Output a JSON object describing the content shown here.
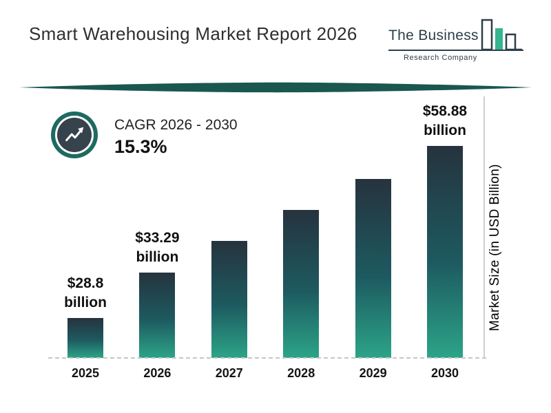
{
  "page": {
    "title": "Smart Warehousing Market Report 2026"
  },
  "logo": {
    "name": "The Business",
    "subtitle": "Research Company",
    "icon": "bar-chart-logo-icon"
  },
  "cagr": {
    "label": "CAGR 2026 - 2030",
    "value": "15.3%",
    "icon": "trend-up-arrow-icon"
  },
  "colors": {
    "divider_teal": "#19574f",
    "badge_ring_teal": "#1e6a60",
    "badge_inner": "#36424c",
    "bar_top": "#26333e",
    "bar_mid": "#1d5a60",
    "bar_bottom": "#2ca488",
    "text": "#141414",
    "axis_gray": "#cfcfcf"
  },
  "chart_data": {
    "type": "bar",
    "title": "Smart Warehousing Market Report 2026",
    "categories": [
      "2025",
      "2026",
      "2027",
      "2028",
      "2029",
      "2030"
    ],
    "values": [
      28.8,
      33.29,
      38.38,
      44.25,
      51.03,
      58.88
    ],
    "values_estimated_from_cagr": [
      false,
      false,
      true,
      true,
      true,
      false
    ],
    "data_labels": [
      {
        "category": "2025",
        "lines": [
          "$28.8",
          "billion"
        ]
      },
      {
        "category": "2026",
        "lines": [
          "$33.29",
          "billion"
        ]
      },
      {
        "category": "2030",
        "lines": [
          "$58.88",
          "billion"
        ]
      }
    ],
    "xlabel": "",
    "ylabel": "Market Size (in USD Billion)",
    "unit": "USD Billion",
    "ylim": [
      0,
      60
    ],
    "grid": false,
    "baseline_style": "dashed",
    "legend": "none",
    "bar_gradient": [
      "#26333e",
      "#1d5a60",
      "#2ca488"
    ],
    "annotation": {
      "label": "CAGR 2026 - 2030",
      "value": "15.3%"
    }
  }
}
